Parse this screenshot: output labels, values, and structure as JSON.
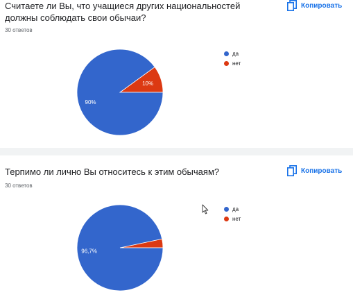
{
  "ui": {
    "copy_label": "Копировать"
  },
  "chart_data": [
    {
      "type": "pie",
      "title": "Считаете ли Вы, что учащиеся других национальностей должны соблюдать свои обычаи?",
      "responses": "30 ответов",
      "categories": [
        "да",
        "нет"
      ],
      "values": [
        90,
        10
      ],
      "labels": [
        "90%",
        "10%"
      ],
      "colors": [
        "#3366cc",
        "#dc3912"
      ],
      "legend_position": "right"
    },
    {
      "type": "pie",
      "title": "Терпимо ли лично Вы относитесь к этим обычаям?",
      "responses": "30 ответов",
      "categories": [
        "да",
        "нет"
      ],
      "values": [
        96.7,
        3.3
      ],
      "labels": [
        "96,7%",
        ""
      ],
      "colors": [
        "#3366cc",
        "#dc3912"
      ],
      "legend_position": "right"
    }
  ]
}
